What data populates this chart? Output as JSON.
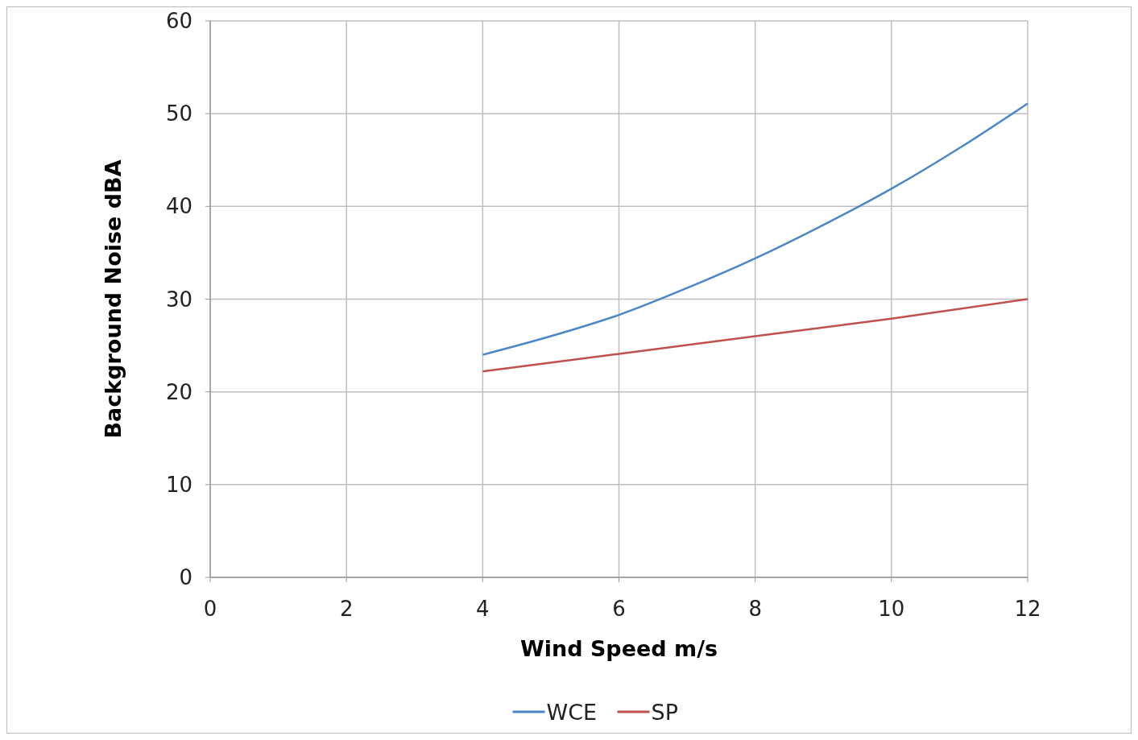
{
  "chart_data": {
    "type": "line",
    "xlabel": "Wind Speed m/s",
    "ylabel": "Background Noise dBA",
    "xlim": [
      0,
      12
    ],
    "xticks": [
      0,
      2,
      4,
      6,
      8,
      10,
      12
    ],
    "ylim": [
      0,
      60
    ],
    "yticks": [
      0,
      10,
      20,
      30,
      40,
      50,
      60
    ],
    "grid": true,
    "legend": "bottom",
    "marker": "none",
    "line_style": "solid",
    "series": [
      {
        "name": "WCE",
        "color": "#4a86c8",
        "x": [
          4,
          5,
          6,
          7,
          8,
          9,
          10,
          11,
          12
        ],
        "values": [
          24,
          26,
          28.3,
          31.2,
          34.4,
          38,
          41.9,
          46.3,
          51.1
        ]
      },
      {
        "name": "SP",
        "color": "#c0504d",
        "x": [
          4,
          6,
          8,
          10,
          12
        ],
        "values": [
          22.2,
          24.1,
          26,
          27.9,
          30
        ]
      }
    ]
  }
}
